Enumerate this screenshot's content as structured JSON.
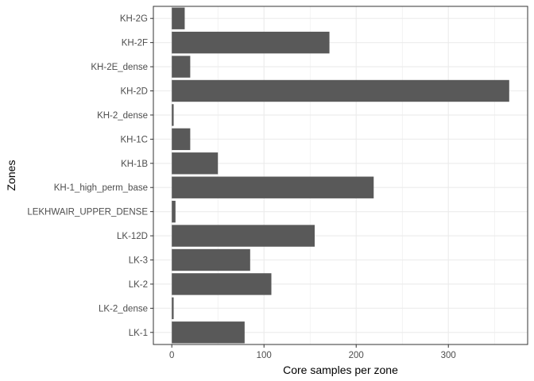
{
  "chart_data": {
    "type": "bar",
    "orientation": "horizontal",
    "categories": [
      "LK-1",
      "LK-2_dense",
      "LK-2",
      "LK-3",
      "LK-12D",
      "LEKHWAIR_UPPER_DENSE",
      "KH-1_high_perm_base",
      "KH-1B",
      "KH-1C",
      "KH-2_dense",
      "KH-2D",
      "KH-2E_dense",
      "KH-2F",
      "KH-2G"
    ],
    "values": [
      79,
      2,
      108,
      85,
      155,
      4,
      219,
      50,
      20,
      2,
      366,
      20,
      171,
      14
    ],
    "xlabel": "Core samples per zone",
    "ylabel": "Zones",
    "xlim": [
      -20,
      386
    ],
    "xticks": [
      0,
      100,
      200,
      300
    ],
    "grid": true,
    "bar_color": "#595959",
    "grid_color": "#ebebeb",
    "panel_border_color": "#333333"
  }
}
